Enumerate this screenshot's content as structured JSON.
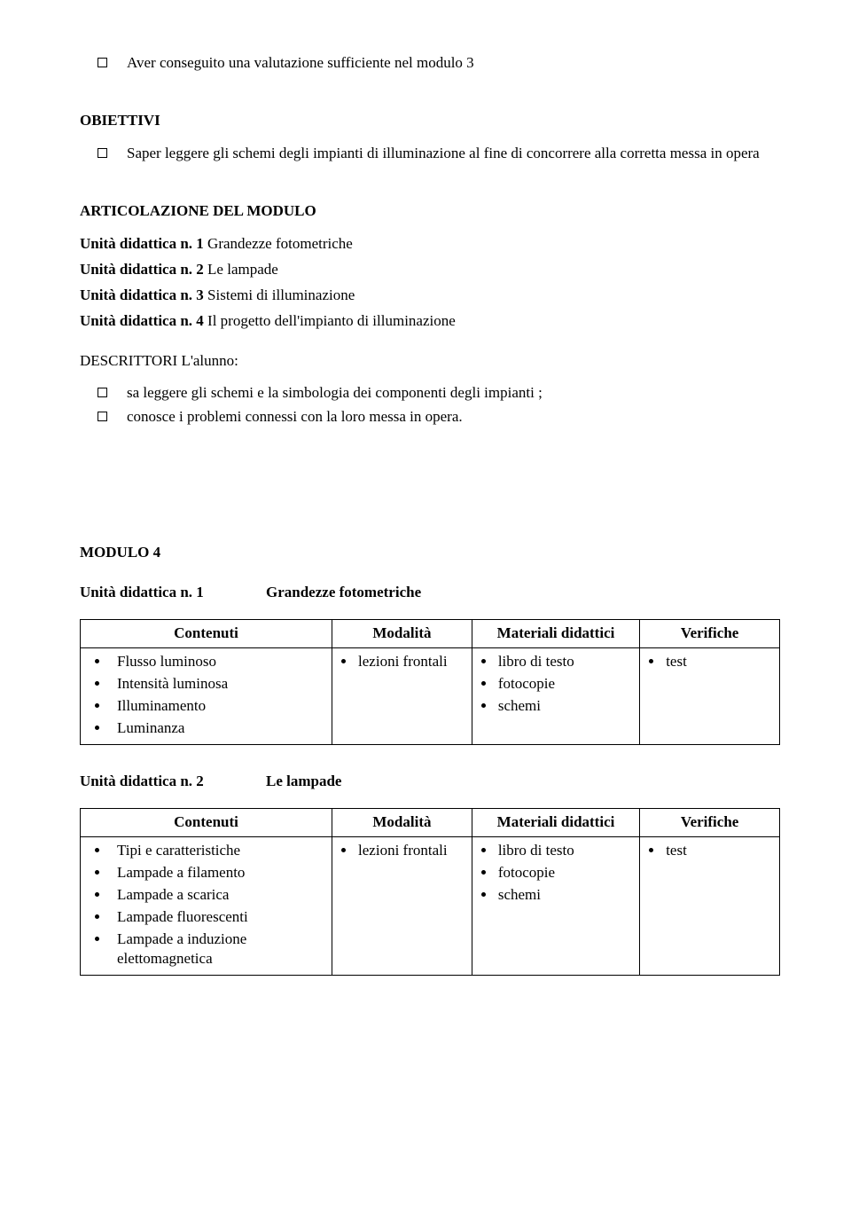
{
  "prereq": "Aver conseguito una valutazione sufficiente nel modulo 3",
  "obiettivi_heading": "OBIETTIVI",
  "obiettivo_1": "Saper leggere gli schemi degli impianti di illuminazione al fine di concorrere alla corretta messa in opera",
  "articolazione_heading": "ARTICOLAZIONE DEL MODULO",
  "units": {
    "u1_label": "Unità didattica n. 1",
    "u1_text": " Grandezze fotometriche",
    "u2_label": "Unità didattica n. 2",
    "u2_text": " Le lampade",
    "u3_label": "Unità didattica n. 3",
    "u3_text": " Sistemi di illuminazione",
    "u4_label": "Unità didattica n. 4",
    "u4_text": " Il progetto dell'impianto di illuminazione"
  },
  "descrittori_heading": "DESCRITTORI  L'alunno:",
  "descrittori": {
    "d1": "sa leggere gli schemi e  la simbologia dei componenti degli impianti ;",
    "d2": "conosce i problemi connessi con la loro messa in opera."
  },
  "modulo4_heading": "MODULO 4",
  "modulo4_unit1": {
    "label": "Unità didattica n. 1",
    "title": "Grandezze fotometriche"
  },
  "modulo4_unit2": {
    "label": "Unità didattica n. 2",
    "title": "Le lampade"
  },
  "table_headers": {
    "contenuti": "Contenuti",
    "modalita": "Modalità",
    "materiali": "Materiali didattici",
    "verifiche": "Verifiche"
  },
  "table1": {
    "contenuti": {
      "c1": "Flusso luminoso",
      "c2": "Intensità luminosa",
      "c3": "Illuminamento",
      "c4": "Luminanza"
    },
    "modalita": {
      "m1": "lezioni frontali"
    },
    "materiali": {
      "m1": "libro di testo",
      "m2": "fotocopie",
      "m3": "schemi"
    },
    "verifiche": {
      "v1": "test"
    }
  },
  "table2": {
    "contenuti": {
      "c1": "Tipi e caratteristiche",
      "c2": "Lampade a filamento",
      "c3": "Lampade a scarica",
      "c4": "Lampade fluorescenti",
      "c5": "Lampade a induzione elettomagnetica"
    },
    "modalita": {
      "m1": "lezioni frontali"
    },
    "materiali": {
      "m1": "libro di testo",
      "m2": "fotocopie",
      "m3": "schemi"
    },
    "verifiche": {
      "v1": "test"
    }
  }
}
